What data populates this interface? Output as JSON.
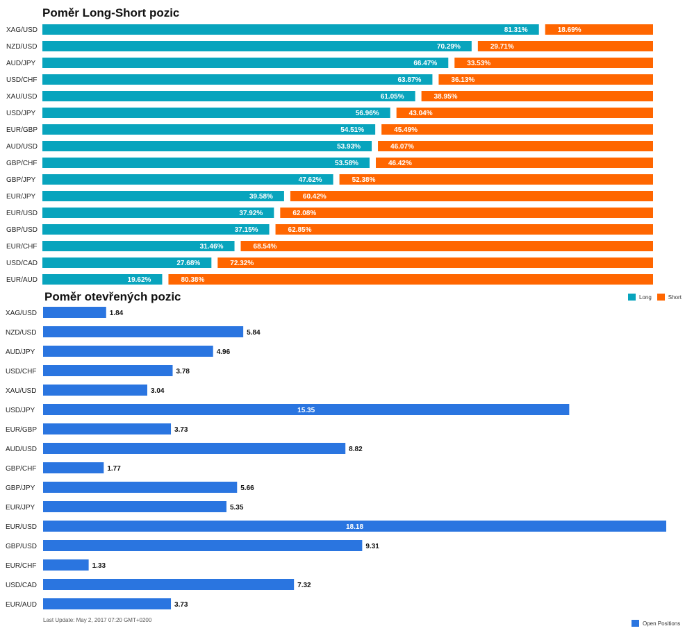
{
  "chart_data": [
    {
      "type": "bar",
      "orientation": "horizontal",
      "stacked": true,
      "title": "Poměr Long-Short pozic",
      "categories": [
        "XAG/USD",
        "NZD/USD",
        "AUD/JPY",
        "USD/CHF",
        "XAU/USD",
        "USD/JPY",
        "EUR/GBP",
        "AUD/USD",
        "GBP/CHF",
        "GBP/JPY",
        "EUR/JPY",
        "EUR/USD",
        "GBP/USD",
        "EUR/CHF",
        "USD/CAD",
        "EUR/AUD"
      ],
      "series": [
        {
          "name": "Long",
          "color": "#08a4bd",
          "values": [
            81.31,
            70.29,
            66.47,
            63.87,
            61.05,
            56.96,
            54.51,
            53.93,
            53.58,
            47.62,
            39.58,
            37.92,
            37.15,
            31.46,
            27.68,
            19.62
          ],
          "labels": [
            "81.31%",
            "70.29%",
            "66.47%",
            "63.87%",
            "61.05%",
            "56.96%",
            "54.51%",
            "53.93%",
            "53.58%",
            "47.62%",
            "39.58%",
            "37.92%",
            "37.15%",
            "31.46%",
            "27.68%",
            "19.62%"
          ]
        },
        {
          "name": "Short",
          "color": "#ff6600",
          "values": [
            18.69,
            29.71,
            33.53,
            36.13,
            38.95,
            43.04,
            45.49,
            46.07,
            46.42,
            52.38,
            60.42,
            62.08,
            62.85,
            68.54,
            72.32,
            80.38
          ],
          "labels": [
            "18.69%",
            "29.71%",
            "33.53%",
            "36.13%",
            "38.95%",
            "43.04%",
            "45.49%",
            "46.07%",
            "46.42%",
            "52.38%",
            "60.42%",
            "62.08%",
            "62.85%",
            "68.54%",
            "72.32%",
            "80.38%"
          ]
        }
      ],
      "xlim": [
        0,
        100
      ],
      "grid": false,
      "legend_position": "bottom-right"
    },
    {
      "type": "bar",
      "orientation": "horizontal",
      "title": "Poměr otevřených pozic",
      "categories": [
        "XAG/USD",
        "NZD/USD",
        "AUD/JPY",
        "USD/CHF",
        "XAU/USD",
        "USD/JPY",
        "EUR/GBP",
        "AUD/USD",
        "GBP/CHF",
        "GBP/JPY",
        "EUR/JPY",
        "EUR/USD",
        "GBP/USD",
        "EUR/CHF",
        "USD/CAD",
        "EUR/AUD"
      ],
      "series": [
        {
          "name": "Open Positions",
          "color": "#2a75e0",
          "values": [
            1.84,
            5.84,
            4.96,
            3.78,
            3.04,
            15.35,
            3.73,
            8.82,
            1.77,
            5.66,
            5.35,
            18.18,
            9.31,
            1.33,
            7.32,
            3.73
          ],
          "labels": [
            "1.84",
            "5.84",
            "4.96",
            "3.78",
            "3.04",
            "15.35",
            "3.73",
            "8.82",
            "1.77",
            "5.66",
            "5.35",
            "18.18",
            "9.31",
            "1.33",
            "7.32",
            "3.73"
          ]
        }
      ],
      "grid": false,
      "legend_position": "bottom-right"
    }
  ],
  "footer": {
    "last_update": "Last Update: May 2, 2017 07:20 GMT+0200"
  }
}
